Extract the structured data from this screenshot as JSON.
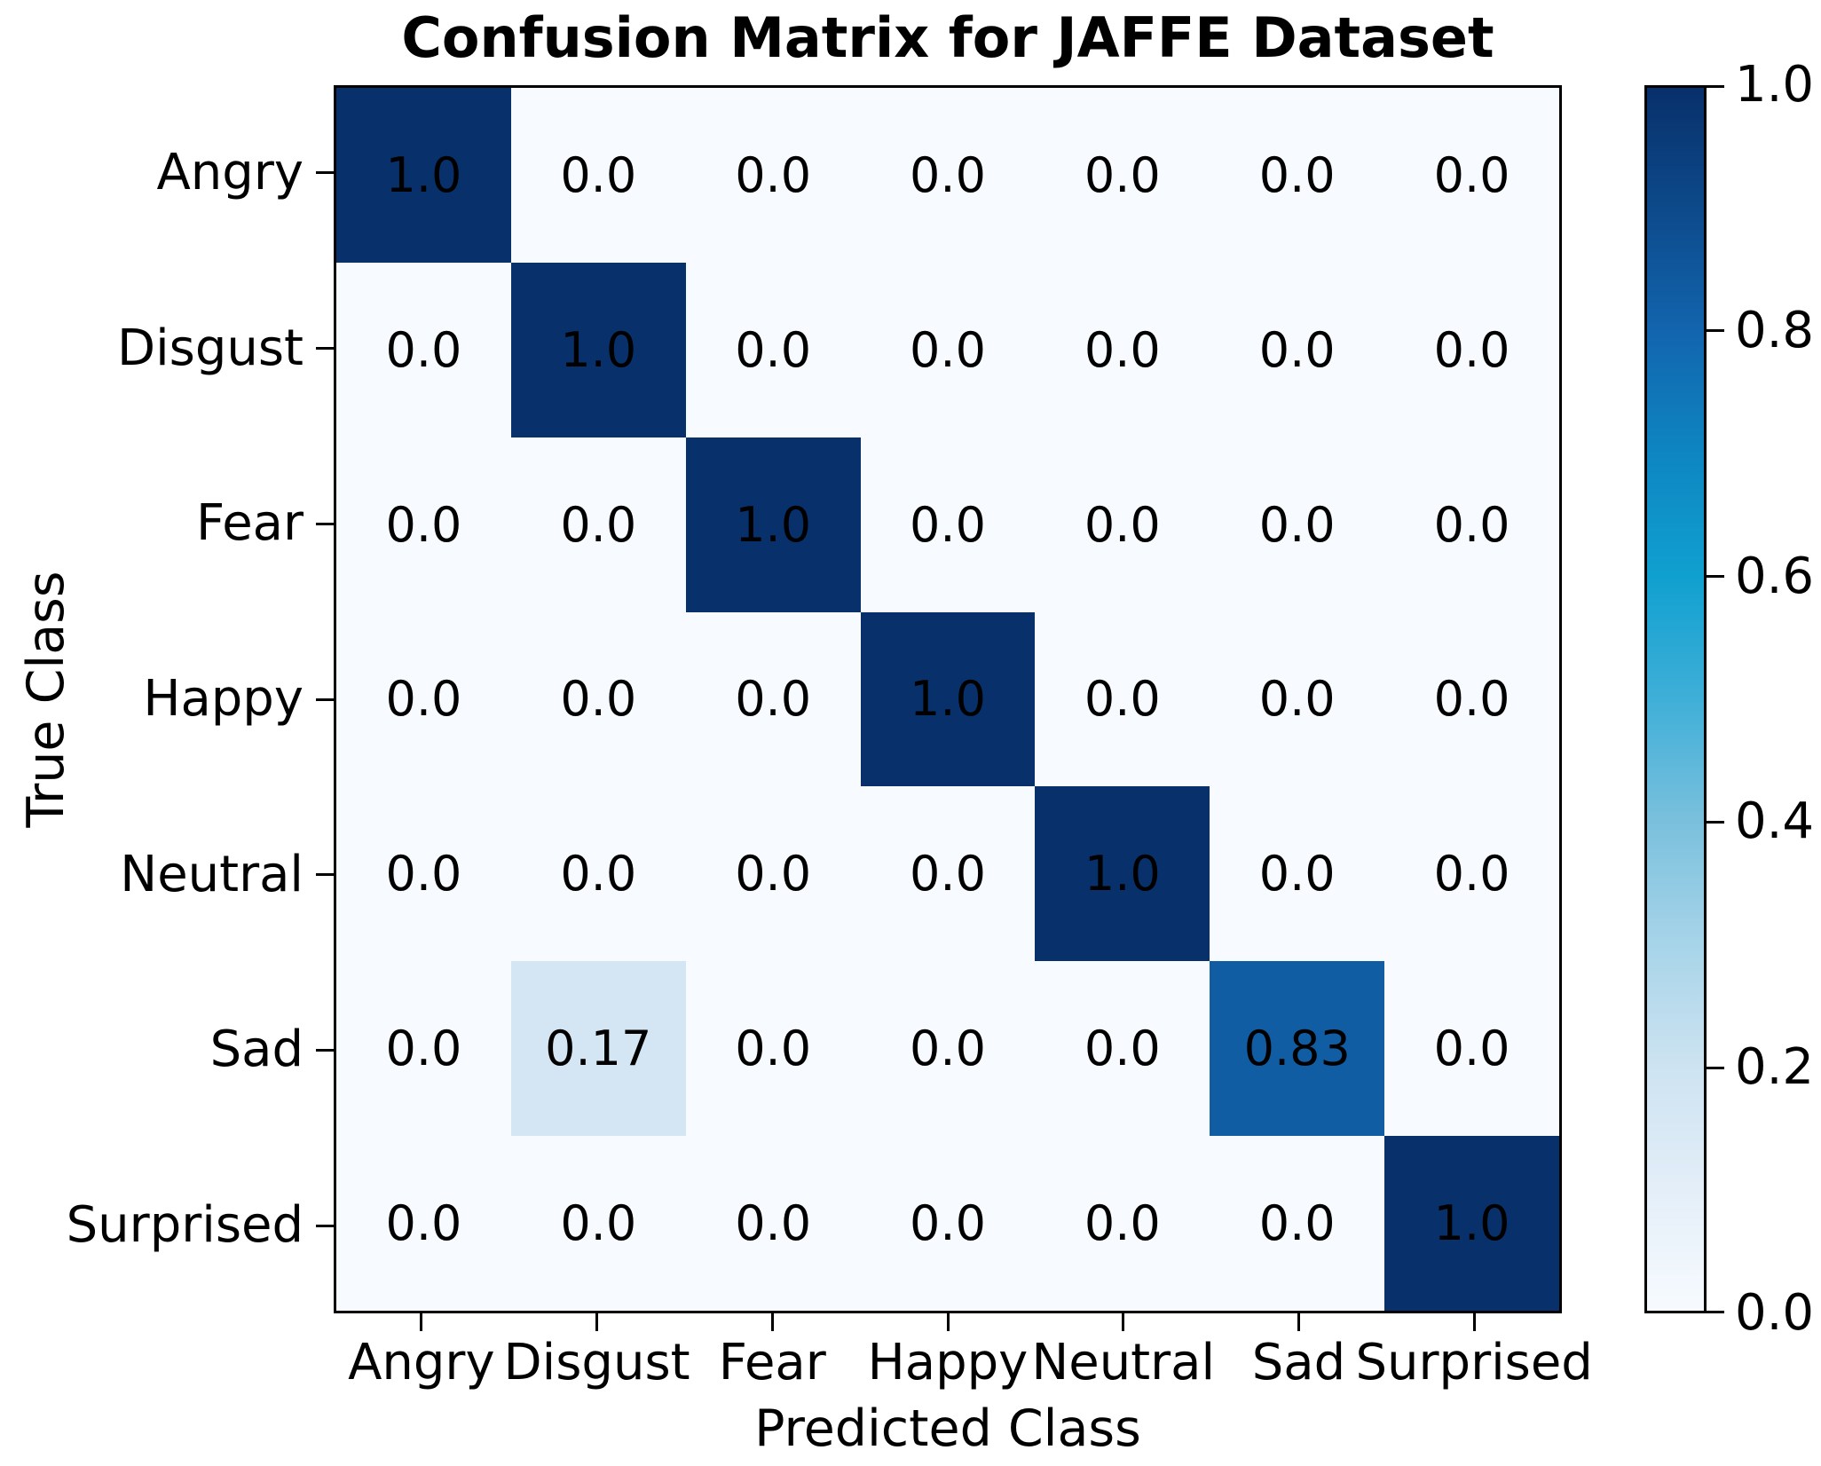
{
  "figure": {
    "title": "Confusion Matrix for JAFFE Dataset"
  },
  "chart_data": {
    "type": "heatmap",
    "title": "Confusion Matrix for JAFFE Dataset",
    "xlabel": "Predicted Class",
    "ylabel": "True Class",
    "x_categories": [
      "Angry",
      "Disgust",
      "Fear",
      "Happy",
      "Neutral",
      "Sad",
      "Surprised"
    ],
    "y_categories": [
      "Angry",
      "Disgust",
      "Fear",
      "Happy",
      "Neutral",
      "Sad",
      "Surprised"
    ],
    "values": [
      [
        1.0,
        0.0,
        0.0,
        0.0,
        0.0,
        0.0,
        0.0
      ],
      [
        0.0,
        1.0,
        0.0,
        0.0,
        0.0,
        0.0,
        0.0
      ],
      [
        0.0,
        0.0,
        1.0,
        0.0,
        0.0,
        0.0,
        0.0
      ],
      [
        0.0,
        0.0,
        0.0,
        1.0,
        0.0,
        0.0,
        0.0
      ],
      [
        0.0,
        0.0,
        0.0,
        0.0,
        1.0,
        0.0,
        0.0
      ],
      [
        0.0,
        0.17,
        0.0,
        0.0,
        0.0,
        0.83,
        0.0
      ],
      [
        0.0,
        0.0,
        0.0,
        0.0,
        0.0,
        0.0,
        1.0
      ]
    ],
    "value_labels": [
      [
        "1.0",
        "0.0",
        "0.0",
        "0.0",
        "0.0",
        "0.0",
        "0.0"
      ],
      [
        "0.0",
        "1.0",
        "0.0",
        "0.0",
        "0.0",
        "0.0",
        "0.0"
      ],
      [
        "0.0",
        "0.0",
        "1.0",
        "0.0",
        "0.0",
        "0.0",
        "0.0"
      ],
      [
        "0.0",
        "0.0",
        "0.0",
        "1.0",
        "0.0",
        "0.0",
        "0.0"
      ],
      [
        "0.0",
        "0.0",
        "0.0",
        "0.0",
        "1.0",
        "0.0",
        "0.0"
      ],
      [
        "0.0",
        "0.17",
        "0.0",
        "0.0",
        "0.0",
        "0.83",
        "0.0"
      ],
      [
        "0.0",
        "0.0",
        "0.0",
        "0.0",
        "0.0",
        "0.0",
        "1.0"
      ]
    ],
    "vmin": 0.0,
    "vmax": 1.0,
    "grid": false,
    "legend": false,
    "colorbar": {
      "position": "right",
      "tick_labels": [
        "1.0",
        "0.8",
        "0.6",
        "0.4",
        "0.2",
        "0.0"
      ]
    },
    "colormap_stops": [
      {
        "v": 0.0,
        "color": "#f7fbff"
      },
      {
        "v": 0.1,
        "color": "#e3eef8"
      },
      {
        "v": 0.2,
        "color": "#cde3f1"
      },
      {
        "v": 0.3,
        "color": "#a7d4e9"
      },
      {
        "v": 0.4,
        "color": "#7ac0dd"
      },
      {
        "v": 0.5,
        "color": "#3fafd8"
      },
      {
        "v": 0.6,
        "color": "#10a0d0"
      },
      {
        "v": 0.7,
        "color": "#0e86c1"
      },
      {
        "v": 0.8,
        "color": "#1265ae"
      },
      {
        "v": 0.9,
        "color": "#0d4a8b"
      },
      {
        "v": 1.0,
        "color": "#08306b"
      }
    ],
    "cell_text_color": "#000000",
    "axis_color": "#000000"
  }
}
